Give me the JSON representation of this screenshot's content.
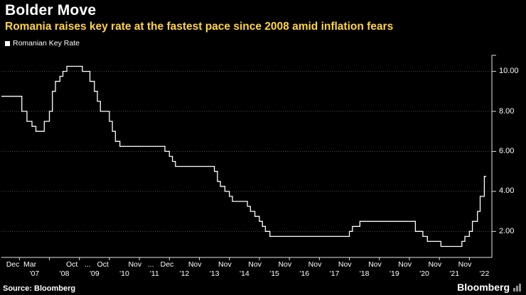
{
  "header": {
    "title": "Bolder Move",
    "subtitle": "Romania raises key rate at the fastest pace since 2008 amid inflation fears"
  },
  "legend": {
    "label": "Romanian Key Rate",
    "swatch_color": "#ffffff"
  },
  "footer": {
    "source": "Source: Bloomberg",
    "brand": "Bloomberg"
  },
  "colors": {
    "background": "#000000",
    "title": "#ffffff",
    "subtitle": "#ffd53e",
    "line": "#ffffff",
    "grid": "#4d4d4d",
    "axis": "#e6e6e6",
    "tick_label": "#ffffff",
    "brand_icon": "#8f8f8f"
  },
  "chart_data": {
    "type": "line",
    "step": true,
    "title": "Bolder Move",
    "subtitle": "Romania raises key rate at the fastest pace since 2008 amid inflation fears",
    "ylabel": "",
    "xlabel": "",
    "grid": "horizontal-dotted",
    "legend_position": "top-left",
    "axis_position": "right",
    "xlim": [
      2006.4,
      2022.75
    ],
    "ylim": [
      0.7,
      10.8
    ],
    "y_ticks": [
      10,
      8,
      6,
      4,
      2
    ],
    "y_tick_labels": [
      "10.00",
      "8.00",
      "6.00",
      "4.00",
      "2.00"
    ],
    "x_month_ticks": [
      {
        "label": "Dec",
        "x": 2006.78
      },
      {
        "label": "Mar",
        "x": 2007.35
      },
      {
        "label": "Oct",
        "x": 2008.75
      },
      {
        "label": "...",
        "x": 2009.28
      },
      {
        "label": "Oct",
        "x": 2009.78
      },
      {
        "label": "Nov",
        "x": 2010.85
      },
      {
        "label": "...",
        "x": 2011.38
      },
      {
        "label": "Dec",
        "x": 2011.92
      },
      {
        "label": "Nov",
        "x": 2012.85
      },
      {
        "label": "Nov",
        "x": 2013.85
      },
      {
        "label": "Nov",
        "x": 2014.85
      },
      {
        "label": "Nov",
        "x": 2015.85
      },
      {
        "label": "Nov",
        "x": 2016.85
      },
      {
        "label": "Nov",
        "x": 2017.85
      },
      {
        "label": "Nov",
        "x": 2018.85
      },
      {
        "label": "Nov",
        "x": 2019.85
      },
      {
        "label": "Nov",
        "x": 2020.85
      },
      {
        "label": "Nov",
        "x": 2021.85
      }
    ],
    "x_year_labels": [
      {
        "label": "'07",
        "x": 2007.5
      },
      {
        "label": "'08",
        "x": 2008.5
      },
      {
        "label": "'09",
        "x": 2009.5
      },
      {
        "label": "'10",
        "x": 2010.5
      },
      {
        "label": "'11",
        "x": 2011.5
      },
      {
        "label": "'12",
        "x": 2012.5
      },
      {
        "label": "'13",
        "x": 2013.5
      },
      {
        "label": "'14",
        "x": 2014.5
      },
      {
        "label": "'15",
        "x": 2015.5
      },
      {
        "label": "'16",
        "x": 2016.5
      },
      {
        "label": "'17",
        "x": 2017.5
      },
      {
        "label": "'18",
        "x": 2018.5
      },
      {
        "label": "'19",
        "x": 2019.5
      },
      {
        "label": "'20",
        "x": 2020.5
      },
      {
        "label": "'21",
        "x": 2021.5
      },
      {
        "label": "'22",
        "x": 2022.5
      }
    ],
    "x_year_boundaries": [
      2007,
      2008,
      2009,
      2010,
      2011,
      2012,
      2013,
      2014,
      2015,
      2016,
      2017,
      2018,
      2019,
      2020,
      2021,
      2022
    ],
    "series": [
      {
        "name": "Romanian Key Rate",
        "color": "#ffffff",
        "points": [
          [
            2006.4,
            8.75
          ],
          [
            2007.08,
            8.0
          ],
          [
            2007.25,
            7.5
          ],
          [
            2007.42,
            7.25
          ],
          [
            2007.55,
            7.0
          ],
          [
            2007.83,
            7.5
          ],
          [
            2008.0,
            8.0
          ],
          [
            2008.1,
            9.0
          ],
          [
            2008.2,
            9.5
          ],
          [
            2008.35,
            9.75
          ],
          [
            2008.45,
            10.0
          ],
          [
            2008.58,
            10.25
          ],
          [
            2009.1,
            10.0
          ],
          [
            2009.35,
            9.5
          ],
          [
            2009.5,
            9.0
          ],
          [
            2009.6,
            8.5
          ],
          [
            2009.7,
            8.0
          ],
          [
            2010.0,
            7.5
          ],
          [
            2010.1,
            7.0
          ],
          [
            2010.2,
            6.5
          ],
          [
            2010.35,
            6.25
          ],
          [
            2011.85,
            6.0
          ],
          [
            2012.0,
            5.75
          ],
          [
            2012.1,
            5.5
          ],
          [
            2012.2,
            5.25
          ],
          [
            2013.5,
            5.0
          ],
          [
            2013.6,
            4.5
          ],
          [
            2013.7,
            4.25
          ],
          [
            2013.85,
            4.0
          ],
          [
            2014.0,
            3.75
          ],
          [
            2014.1,
            3.5
          ],
          [
            2014.6,
            3.25
          ],
          [
            2014.7,
            3.0
          ],
          [
            2014.85,
            2.75
          ],
          [
            2015.0,
            2.5
          ],
          [
            2015.1,
            2.25
          ],
          [
            2015.2,
            2.0
          ],
          [
            2015.35,
            1.75
          ],
          [
            2018.0,
            2.0
          ],
          [
            2018.1,
            2.25
          ],
          [
            2018.35,
            2.5
          ],
          [
            2020.2,
            2.0
          ],
          [
            2020.45,
            1.75
          ],
          [
            2020.6,
            1.5
          ],
          [
            2021.05,
            1.25
          ],
          [
            2021.75,
            1.5
          ],
          [
            2021.85,
            1.75
          ],
          [
            2022.0,
            2.0
          ],
          [
            2022.1,
            2.5
          ],
          [
            2022.27,
            3.0
          ],
          [
            2022.36,
            3.75
          ],
          [
            2022.5,
            4.75
          ],
          [
            2022.56,
            4.75
          ]
        ]
      }
    ]
  }
}
